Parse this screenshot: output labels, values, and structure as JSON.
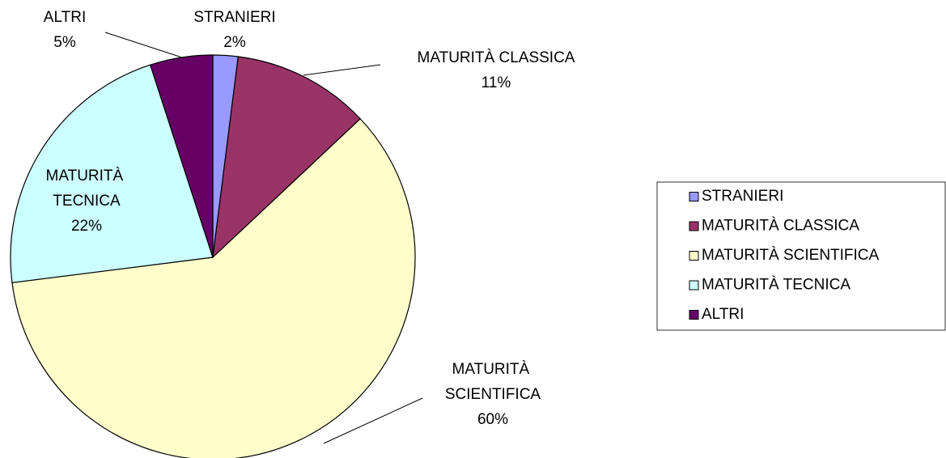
{
  "chart_data": {
    "type": "pie",
    "categories": [
      "STRANIERI",
      "MATURITÀ CLASSICA",
      "MATURITÀ SCIENTIFICA",
      "MATURITÀ TECNICA",
      "ALTRI"
    ],
    "values": [
      2,
      11,
      60,
      22,
      5
    ],
    "value_labels": [
      "2%",
      "11%",
      "60%",
      "22%",
      "5%"
    ],
    "colors": [
      "#9999ff",
      "#993366",
      "#ffffcc",
      "#ccffff",
      "#660066"
    ],
    "legend": "right"
  }
}
